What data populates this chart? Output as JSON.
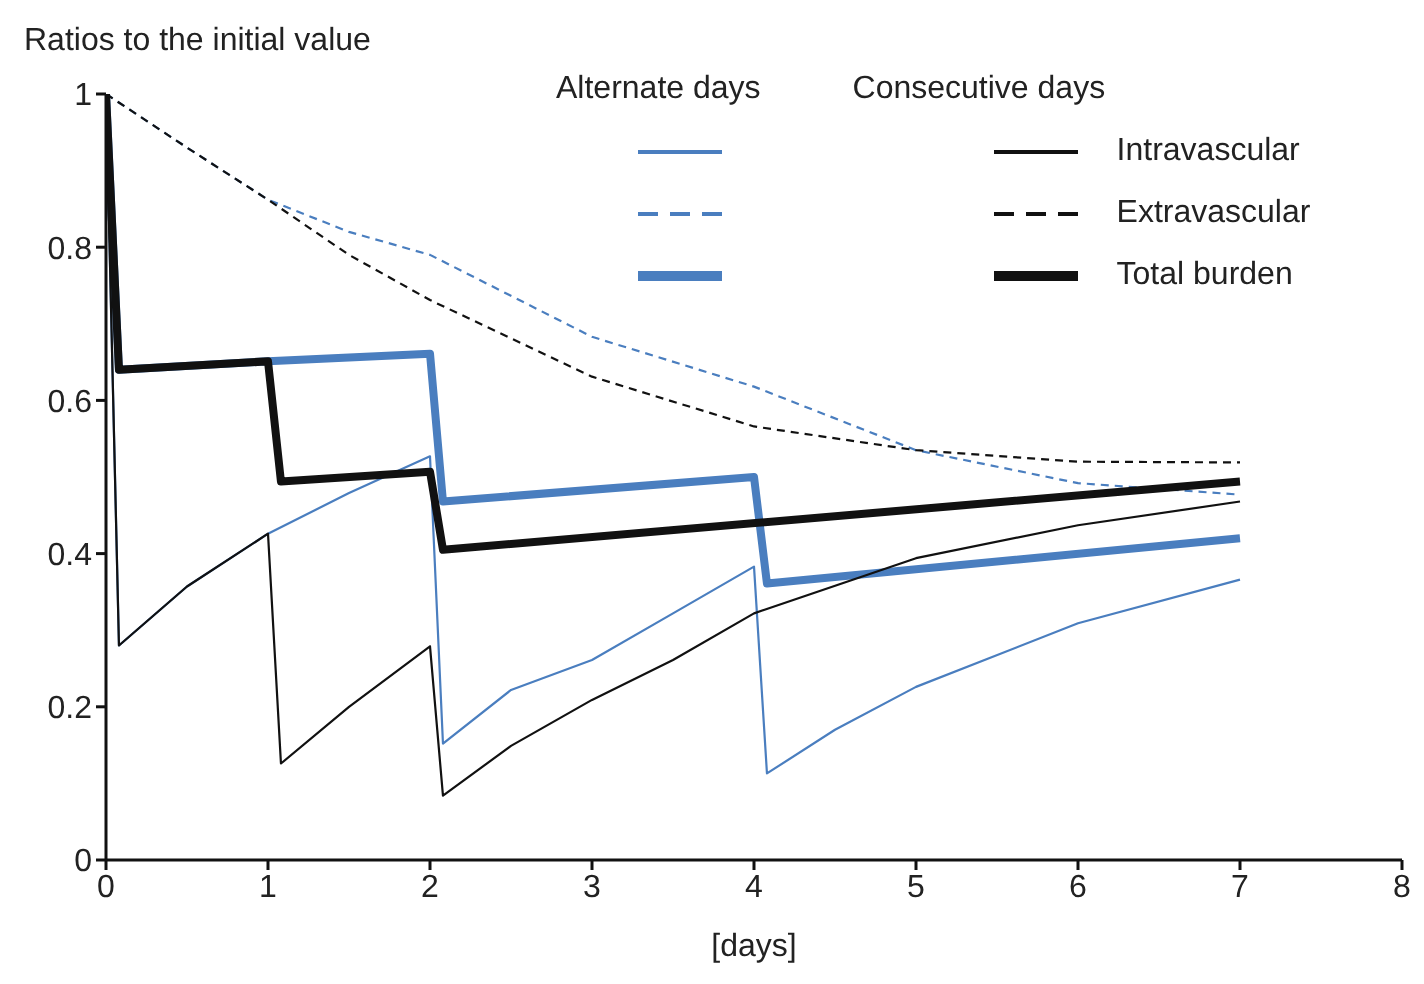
{
  "chart_data": {
    "type": "line",
    "ylabel": "Ratios to the initial value",
    "xlabel": "[days]",
    "annotations": [
      "Alternate days",
      "Consecutive days"
    ],
    "xlim": [
      0,
      8
    ],
    "xticks": [
      0,
      1,
      2,
      3,
      4,
      5,
      6,
      7,
      8
    ],
    "ylim": [
      0,
      1
    ],
    "yticks": [
      0,
      0.2,
      0.4,
      0.6,
      0.8,
      1
    ],
    "grid": false,
    "legend": "top right",
    "marker": "none",
    "series": [
      {
        "color": "#4a7ebf",
        "line_style": "solid",
        "x": [
          0,
          0.08,
          0.5,
          1,
          1.5,
          2,
          2.08,
          2.5,
          3,
          3.5,
          4,
          4.08,
          4.5,
          5,
          6,
          7
        ],
        "values": [
          1,
          0.28,
          0.357,
          0.426,
          0.479,
          0.527,
          0.152,
          0.222,
          0.261,
          0.322,
          0.383,
          0.113,
          0.17,
          0.226,
          0.309,
          0.366
        ]
      },
      {
        "color": "#4a7ebf",
        "line_style": "dashed",
        "x": [
          0,
          0.5,
          1,
          1.5,
          2,
          3,
          4,
          5,
          6,
          7
        ],
        "values": [
          1,
          0.93,
          0.862,
          0.82,
          0.79,
          0.683,
          0.618,
          0.535,
          0.492,
          0.477
        ]
      },
      {
        "color": "#4a7ebf",
        "line_style": "solid",
        "x": [
          0,
          0.08,
          1,
          2,
          2.08,
          4,
          4.08,
          7
        ],
        "values": [
          1,
          0.64,
          0.651,
          0.661,
          0.468,
          0.5,
          0.361,
          0.42
        ]
      },
      {
        "name": "Intravascular",
        "color": "#111111",
        "line_style": "solid",
        "x": [
          0,
          0.08,
          0.5,
          1,
          1.08,
          1.5,
          2,
          2.08,
          2.5,
          3,
          3.5,
          4,
          5,
          6,
          7
        ],
        "values": [
          1,
          0.28,
          0.357,
          0.426,
          0.126,
          0.2,
          0.279,
          0.084,
          0.149,
          0.209,
          0.261,
          0.322,
          0.394,
          0.437,
          0.468
        ]
      },
      {
        "name": "Extravascular",
        "color": "#111111",
        "line_style": "dashed",
        "x": [
          0,
          0.5,
          1,
          1.5,
          2,
          3,
          4,
          5,
          6,
          7
        ],
        "values": [
          1,
          0.93,
          0.862,
          0.79,
          0.731,
          0.631,
          0.566,
          0.535,
          0.52,
          0.519
        ]
      },
      {
        "name": "Total burden",
        "color": "#111111",
        "line_style": "solid",
        "x": [
          0,
          0.08,
          1,
          1.08,
          2,
          2.08,
          7
        ],
        "values": [
          1,
          0.64,
          0.651,
          0.494,
          0.507,
          0.405,
          0.494
        ]
      }
    ]
  }
}
